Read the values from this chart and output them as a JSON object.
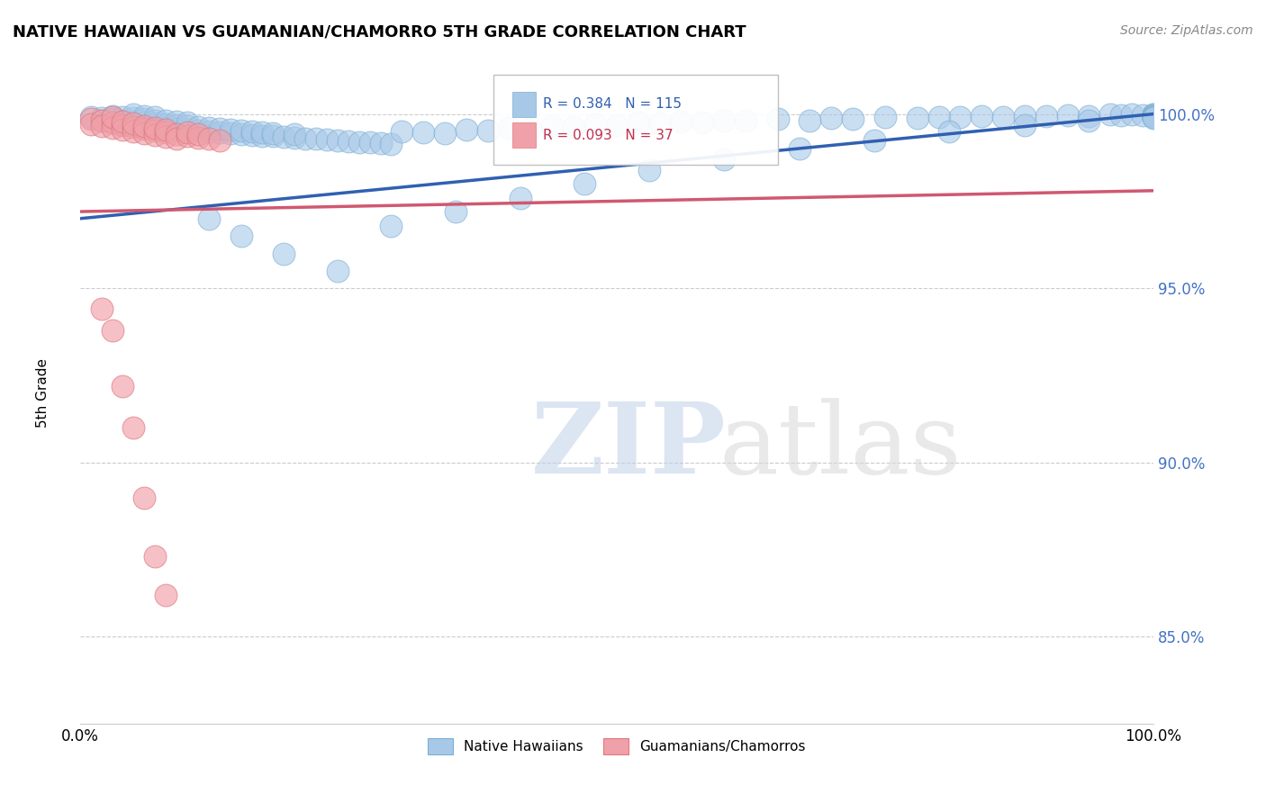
{
  "title": "NATIVE HAWAIIAN VS GUAMANIAN/CHAMORRO 5TH GRADE CORRELATION CHART",
  "source_text": "Source: ZipAtlas.com",
  "ylabel": "5th Grade",
  "xlim": [
    0.0,
    1.0
  ],
  "ylim": [
    0.825,
    1.015
  ],
  "yticks": [
    0.85,
    0.9,
    0.95,
    1.0
  ],
  "ytick_labels": [
    "85.0%",
    "90.0%",
    "95.0%",
    "100.0%"
  ],
  "blue_color": "#a8c8e8",
  "blue_edge_color": "#7aafd4",
  "pink_color": "#f0a0a8",
  "pink_edge_color": "#e07880",
  "blue_line_color": "#3060b0",
  "pink_line_color": "#d05870",
  "legend_blue_color": "#a8c8e8",
  "legend_pink_color": "#f0a0a8",
  "R_blue": 0.384,
  "N_blue": 115,
  "R_pink": 0.093,
  "N_pink": 37,
  "watermark_zip": "ZIP",
  "watermark_atlas": "atlas",
  "ytick_color": "#4472c4",
  "blue_x": [
    0.01,
    0.02,
    0.02,
    0.03,
    0.03,
    0.03,
    0.04,
    0.04,
    0.04,
    0.05,
    0.05,
    0.05,
    0.05,
    0.06,
    0.06,
    0.06,
    0.06,
    0.07,
    0.07,
    0.07,
    0.07,
    0.08,
    0.08,
    0.08,
    0.09,
    0.09,
    0.09,
    0.1,
    0.1,
    0.1,
    0.11,
    0.11,
    0.12,
    0.12,
    0.13,
    0.13,
    0.14,
    0.14,
    0.15,
    0.15,
    0.16,
    0.16,
    0.17,
    0.17,
    0.18,
    0.18,
    0.19,
    0.2,
    0.2,
    0.21,
    0.22,
    0.23,
    0.24,
    0.25,
    0.26,
    0.27,
    0.28,
    0.29,
    0.3,
    0.32,
    0.34,
    0.36,
    0.38,
    0.4,
    0.42,
    0.44,
    0.46,
    0.48,
    0.5,
    0.52,
    0.54,
    0.56,
    0.58,
    0.6,
    0.62,
    0.65,
    0.68,
    0.7,
    0.72,
    0.75,
    0.78,
    0.8,
    0.82,
    0.84,
    0.86,
    0.88,
    0.9,
    0.92,
    0.94,
    0.96,
    0.97,
    0.98,
    0.99,
    1.0,
    1.0,
    1.0,
    1.0,
    1.0,
    1.0,
    1.0,
    0.12,
    0.15,
    0.19,
    0.24,
    0.29,
    0.35,
    0.41,
    0.47,
    0.53,
    0.6,
    0.67,
    0.74,
    0.81,
    0.88,
    0.94
  ],
  "blue_y": [
    0.999,
    0.9988,
    0.998,
    0.9985,
    0.9975,
    0.9995,
    0.997,
    0.9982,
    0.9992,
    0.9968,
    0.9978,
    0.9988,
    0.9998,
    0.9965,
    0.9975,
    0.9985,
    0.9995,
    0.9962,
    0.9972,
    0.9982,
    0.9992,
    0.996,
    0.997,
    0.998,
    0.9958,
    0.9968,
    0.9978,
    0.9955,
    0.9965,
    0.9975,
    0.9953,
    0.9963,
    0.995,
    0.996,
    0.9948,
    0.9958,
    0.9945,
    0.9955,
    0.9943,
    0.9953,
    0.994,
    0.995,
    0.9938,
    0.9948,
    0.9936,
    0.9946,
    0.9934,
    0.9932,
    0.9942,
    0.993,
    0.9928,
    0.9926,
    0.9924,
    0.9922,
    0.992,
    0.9918,
    0.9916,
    0.9914,
    0.995,
    0.9948,
    0.9946,
    0.9954,
    0.9952,
    0.996,
    0.9958,
    0.9966,
    0.9964,
    0.997,
    0.9968,
    0.9975,
    0.9972,
    0.9978,
    0.9975,
    0.9982,
    0.998,
    0.9985,
    0.9982,
    0.9988,
    0.9985,
    0.999,
    0.9988,
    0.9992,
    0.999,
    0.9994,
    0.9992,
    0.9995,
    0.9993,
    0.9997,
    0.9995,
    0.9998,
    0.9996,
    0.9998,
    0.9997,
    1.0,
    0.9998,
    0.9996,
    0.9994,
    0.9992,
    0.999,
    0.9988,
    0.97,
    0.965,
    0.96,
    0.955,
    0.968,
    0.972,
    0.976,
    0.98,
    0.984,
    0.987,
    0.99,
    0.9925,
    0.995,
    0.9968,
    0.9982
  ],
  "pink_x": [
    0.01,
    0.01,
    0.02,
    0.02,
    0.03,
    0.03,
    0.03,
    0.04,
    0.04,
    0.04,
    0.05,
    0.05,
    0.05,
    0.06,
    0.06,
    0.06,
    0.07,
    0.07,
    0.07,
    0.08,
    0.08,
    0.08,
    0.09,
    0.09,
    0.1,
    0.1,
    0.11,
    0.11,
    0.12,
    0.13,
    0.02,
    0.03,
    0.04,
    0.05,
    0.06,
    0.07,
    0.08
  ],
  "pink_y": [
    0.9985,
    0.997,
    0.998,
    0.9965,
    0.9975,
    0.996,
    0.999,
    0.9968,
    0.9955,
    0.9978,
    0.9963,
    0.995,
    0.9972,
    0.9958,
    0.9945,
    0.9965,
    0.9953,
    0.994,
    0.996,
    0.9948,
    0.9935,
    0.9955,
    0.9943,
    0.993,
    0.9938,
    0.9948,
    0.9933,
    0.9943,
    0.9928,
    0.9923,
    0.944,
    0.938,
    0.922,
    0.91,
    0.89,
    0.873,
    0.862
  ],
  "blue_trendline_x": [
    0.0,
    1.0
  ],
  "blue_trendline_y": [
    0.97,
    1.0
  ],
  "pink_trendline_x": [
    0.0,
    1.0
  ],
  "pink_trendline_y": [
    0.972,
    0.978
  ]
}
